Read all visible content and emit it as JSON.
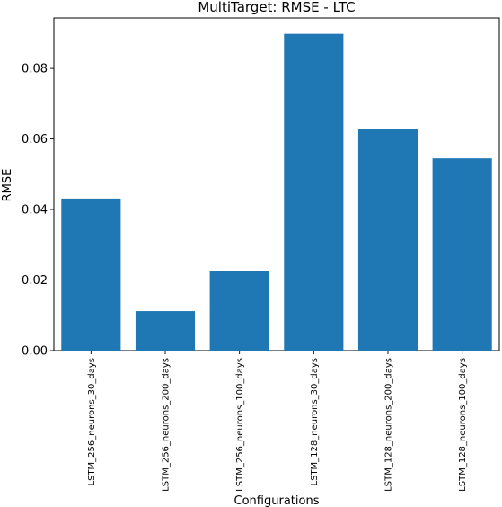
{
  "chart_data": {
    "type": "bar",
    "title": "MultiTarget: RMSE - LTC",
    "xlabel": "Configurations",
    "ylabel": "RMSE",
    "categories": [
      "LSTM_256_neurons_30_days",
      "LSTM_256_neurons_200_days",
      "LSTM_256_neurons_100_days",
      "LSTM_128_neurons_30_days",
      "LSTM_128_neurons_200_days",
      "LSTM_128_neurons_100_days"
    ],
    "values": [
      0.0431,
      0.0112,
      0.0226,
      0.0898,
      0.0627,
      0.0545
    ],
    "ylim": [
      0,
      0.0943
    ],
    "yticks": [
      0.0,
      0.02,
      0.04,
      0.06,
      0.08
    ],
    "ytick_labels": [
      "0.00",
      "0.02",
      "0.04",
      "0.06",
      "0.08"
    ],
    "bar_color": "#1f77b4",
    "grid": false,
    "legend": "none"
  }
}
